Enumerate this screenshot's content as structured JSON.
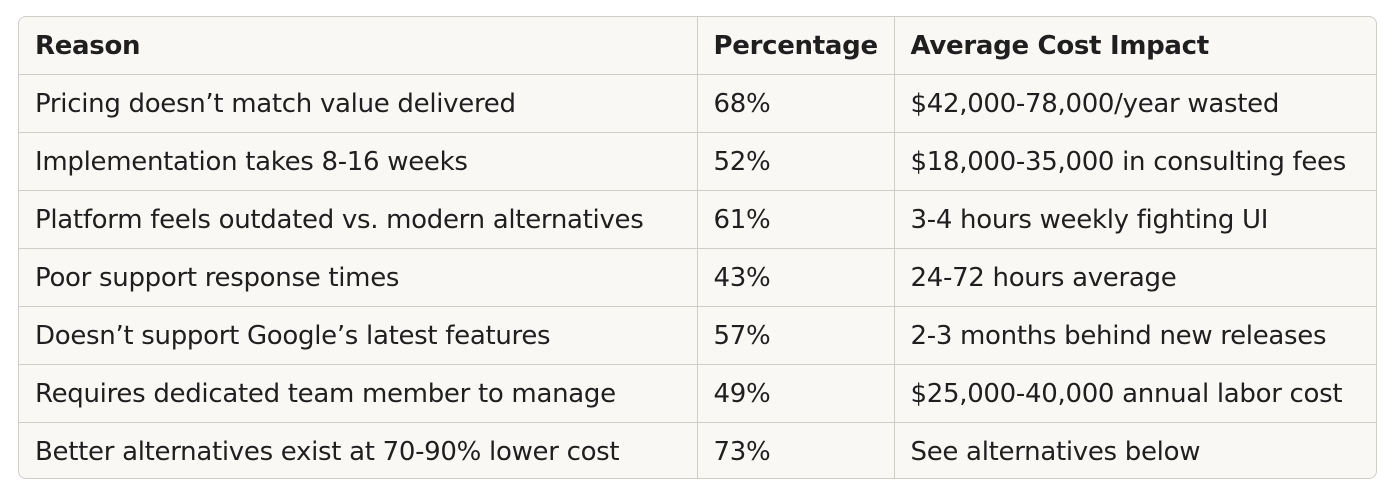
{
  "table": {
    "headers": [
      "Reason",
      "Percentage",
      "Average Cost Impact"
    ],
    "rows": [
      [
        "Pricing doesn’t match value delivered",
        "68%",
        "$42,000-78,000/year wasted"
      ],
      [
        "Implementation takes 8-16 weeks",
        "52%",
        "$18,000-35,000 in consulting fees"
      ],
      [
        "Platform feels outdated vs. modern alternatives",
        "61%",
        "3-4 hours weekly fighting UI"
      ],
      [
        "Poor support response times",
        "43%",
        "24-72 hours average"
      ],
      [
        "Doesn’t support Google’s latest features",
        "57%",
        "2-3 months behind new releases"
      ],
      [
        "Requires dedicated team member to manage",
        "49%",
        "$25,000-40,000 annual labor cost"
      ],
      [
        "Better alternatives exist at 70-90% lower cost",
        "73%",
        "See alternatives below"
      ]
    ]
  }
}
